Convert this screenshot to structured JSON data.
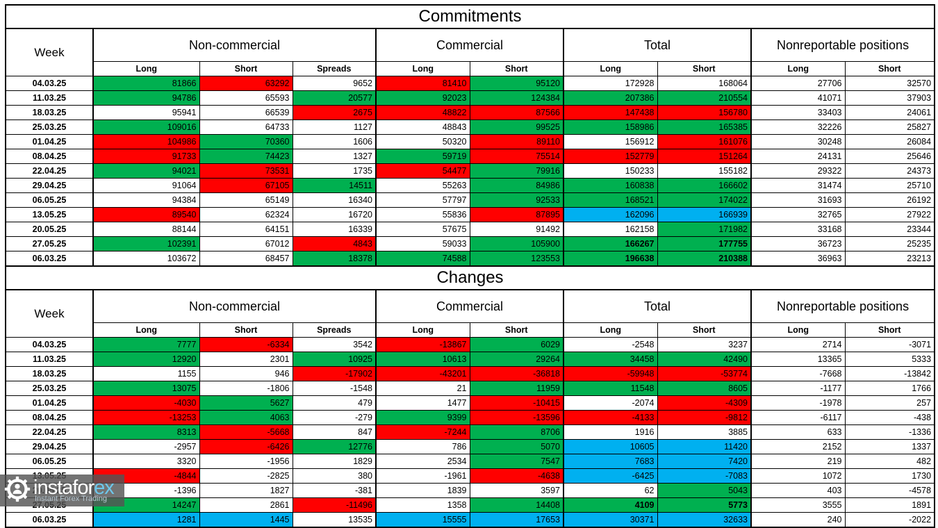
{
  "colors": {
    "g": "#00B050",
    "r": "#FF0000",
    "b": "#00B0F0",
    "w": "#FFFFFF"
  },
  "watermark": {
    "brand_main": "instafor",
    "brand_accent": "ex",
    "tagline": "Instant Forex Trading",
    "gear_icon": "gear-person-icon"
  },
  "tables": [
    {
      "title": "Commitments",
      "week_header": "Week",
      "groups": [
        {
          "label": "Non-commercial",
          "cols": [
            "Long",
            "Short",
            "Spreads"
          ]
        },
        {
          "label": "Commercial",
          "cols": [
            "Long",
            "Short"
          ]
        },
        {
          "label": "Total",
          "cols": [
            "Long",
            "Short"
          ]
        },
        {
          "label": "Nonreportable positions",
          "cols": [
            "Long",
            "Short"
          ]
        }
      ],
      "rows": [
        {
          "week": "04.03.25",
          "cells": [
            {
              "v": "81866",
              "c": "g"
            },
            {
              "v": "63292",
              "c": "r"
            },
            {
              "v": "9652"
            },
            {
              "v": "81410",
              "c": "r"
            },
            {
              "v": "95120",
              "c": "g"
            },
            {
              "v": "172928"
            },
            {
              "v": "168064"
            },
            {
              "v": "27706"
            },
            {
              "v": "32570"
            }
          ]
        },
        {
          "week": "11.03.25",
          "cells": [
            {
              "v": "94786",
              "c": "g"
            },
            {
              "v": "65593"
            },
            {
              "v": "20577",
              "c": "g"
            },
            {
              "v": "92023",
              "c": "g"
            },
            {
              "v": "124384",
              "c": "g"
            },
            {
              "v": "207386",
              "c": "g"
            },
            {
              "v": "210554",
              "c": "g"
            },
            {
              "v": "41071"
            },
            {
              "v": "37903"
            }
          ]
        },
        {
          "week": "18.03.25",
          "cells": [
            {
              "v": "95941"
            },
            {
              "v": "66539"
            },
            {
              "v": "2675",
              "c": "r"
            },
            {
              "v": "48822",
              "c": "r"
            },
            {
              "v": "87566",
              "c": "r"
            },
            {
              "v": "147438",
              "c": "r"
            },
            {
              "v": "156780",
              "c": "r"
            },
            {
              "v": "33403"
            },
            {
              "v": "24061"
            }
          ]
        },
        {
          "week": "25.03.25",
          "cells": [
            {
              "v": "109016",
              "c": "g"
            },
            {
              "v": "64733"
            },
            {
              "v": "1127"
            },
            {
              "v": "48843"
            },
            {
              "v": "99525",
              "c": "g"
            },
            {
              "v": "158986",
              "c": "g"
            },
            {
              "v": "165385",
              "c": "g"
            },
            {
              "v": "32226"
            },
            {
              "v": "25827"
            }
          ]
        },
        {
          "week": "01.04.25",
          "cells": [
            {
              "v": "104986",
              "c": "r"
            },
            {
              "v": "70360",
              "c": "g"
            },
            {
              "v": "1606"
            },
            {
              "v": "50320"
            },
            {
              "v": "89110",
              "c": "r"
            },
            {
              "v": "156912"
            },
            {
              "v": "161076",
              "c": "r"
            },
            {
              "v": "30248"
            },
            {
              "v": "26084"
            }
          ]
        },
        {
          "week": "08.04.25",
          "cells": [
            {
              "v": "91733",
              "c": "r"
            },
            {
              "v": "74423",
              "c": "g"
            },
            {
              "v": "1327"
            },
            {
              "v": "59719",
              "c": "g"
            },
            {
              "v": "75514",
              "c": "r"
            },
            {
              "v": "152779",
              "c": "r"
            },
            {
              "v": "151264",
              "c": "r"
            },
            {
              "v": "24131"
            },
            {
              "v": "25646"
            }
          ]
        },
        {
          "week": "22.04.25",
          "cells": [
            {
              "v": "94021",
              "c": "g"
            },
            {
              "v": "73531",
              "c": "r"
            },
            {
              "v": "1735"
            },
            {
              "v": "54477",
              "c": "r"
            },
            {
              "v": "79916",
              "c": "g"
            },
            {
              "v": "150233"
            },
            {
              "v": "155182"
            },
            {
              "v": "29322"
            },
            {
              "v": "24373"
            }
          ]
        },
        {
          "week": "29.04.25",
          "cells": [
            {
              "v": "91064"
            },
            {
              "v": "67105",
              "c": "r"
            },
            {
              "v": "14511",
              "c": "g"
            },
            {
              "v": "55263"
            },
            {
              "v": "84986",
              "c": "g"
            },
            {
              "v": "160838",
              "c": "g"
            },
            {
              "v": "166602",
              "c": "g"
            },
            {
              "v": "31474"
            },
            {
              "v": "25710"
            }
          ]
        },
        {
          "week": "06.05.25",
          "cells": [
            {
              "v": "94384"
            },
            {
              "v": "65149"
            },
            {
              "v": "16340"
            },
            {
              "v": "57797"
            },
            {
              "v": "92533",
              "c": "g"
            },
            {
              "v": "168521",
              "c": "g"
            },
            {
              "v": "174022",
              "c": "g"
            },
            {
              "v": "31693"
            },
            {
              "v": "26192"
            }
          ]
        },
        {
          "week": "13.05.25",
          "cells": [
            {
              "v": "89540",
              "c": "r"
            },
            {
              "v": "62324"
            },
            {
              "v": "16720"
            },
            {
              "v": "55836"
            },
            {
              "v": "87895",
              "c": "r"
            },
            {
              "v": "162096",
              "c": "b"
            },
            {
              "v": "166939",
              "c": "b"
            },
            {
              "v": "32765"
            },
            {
              "v": "27922"
            }
          ]
        },
        {
          "week": "20.05.25",
          "cells": [
            {
              "v": "88144"
            },
            {
              "v": "64151"
            },
            {
              "v": "16339"
            },
            {
              "v": "57675"
            },
            {
              "v": "91492"
            },
            {
              "v": "162158"
            },
            {
              "v": "171982",
              "c": "g"
            },
            {
              "v": "33168"
            },
            {
              "v": "23344"
            }
          ]
        },
        {
          "week": "27.05.25",
          "cells": [
            {
              "v": "102391",
              "c": "g"
            },
            {
              "v": "67012"
            },
            {
              "v": "4843",
              "c": "r"
            },
            {
              "v": "59033"
            },
            {
              "v": "105900",
              "c": "g"
            },
            {
              "v": "166267",
              "c": "g",
              "b": true
            },
            {
              "v": "177755",
              "c": "g",
              "b": true
            },
            {
              "v": "36723"
            },
            {
              "v": "25235"
            }
          ]
        },
        {
          "week": "06.03.25",
          "cells": [
            {
              "v": "103672"
            },
            {
              "v": "68457"
            },
            {
              "v": "18378",
              "c": "g"
            },
            {
              "v": "74588",
              "c": "g"
            },
            {
              "v": "123553",
              "c": "g"
            },
            {
              "v": "196638",
              "c": "g",
              "b": true
            },
            {
              "v": "210388",
              "c": "g",
              "b": true
            },
            {
              "v": "36963"
            },
            {
              "v": "23213"
            }
          ]
        }
      ]
    },
    {
      "title": "Changes",
      "week_header": "Week",
      "groups": [
        {
          "label": "Non-commercial",
          "cols": [
            "Long",
            "Short",
            "Spreads"
          ]
        },
        {
          "label": "Commercial",
          "cols": [
            "Long",
            "Short"
          ]
        },
        {
          "label": "Total",
          "cols": [
            "Long",
            "Short"
          ]
        },
        {
          "label": "Nonreportable positions",
          "cols": [
            "Long",
            "Short"
          ]
        }
      ],
      "rows": [
        {
          "week": "04.03.25",
          "cells": [
            {
              "v": "7777",
              "c": "g"
            },
            {
              "v": "-6334",
              "c": "r"
            },
            {
              "v": "3542"
            },
            {
              "v": "-13867",
              "c": "r"
            },
            {
              "v": "6029",
              "c": "g"
            },
            {
              "v": "-2548"
            },
            {
              "v": "3237"
            },
            {
              "v": "2714"
            },
            {
              "v": "-3071"
            }
          ]
        },
        {
          "week": "11.03.25",
          "cells": [
            {
              "v": "12920",
              "c": "g"
            },
            {
              "v": "2301"
            },
            {
              "v": "10925",
              "c": "g"
            },
            {
              "v": "10613",
              "c": "g"
            },
            {
              "v": "29264",
              "c": "g"
            },
            {
              "v": "34458",
              "c": "g"
            },
            {
              "v": "42490",
              "c": "g"
            },
            {
              "v": "13365"
            },
            {
              "v": "5333"
            }
          ]
        },
        {
          "week": "18.03.25",
          "cells": [
            {
              "v": "1155"
            },
            {
              "v": "946"
            },
            {
              "v": "-17902",
              "c": "r"
            },
            {
              "v": "-43201",
              "c": "r"
            },
            {
              "v": "-36818",
              "c": "r"
            },
            {
              "v": "-59948",
              "c": "r"
            },
            {
              "v": "-53774",
              "c": "r"
            },
            {
              "v": "-7668"
            },
            {
              "v": "-13842"
            }
          ]
        },
        {
          "week": "25.03.25",
          "cells": [
            {
              "v": "13075",
              "c": "g"
            },
            {
              "v": "-1806"
            },
            {
              "v": "-1548"
            },
            {
              "v": "21"
            },
            {
              "v": "11959",
              "c": "g"
            },
            {
              "v": "11548",
              "c": "g"
            },
            {
              "v": "8605",
              "c": "g"
            },
            {
              "v": "-1177"
            },
            {
              "v": "1766"
            }
          ]
        },
        {
          "week": "01.04.25",
          "cells": [
            {
              "v": "-4030",
              "c": "r"
            },
            {
              "v": "5627",
              "c": "g"
            },
            {
              "v": "479"
            },
            {
              "v": "1477"
            },
            {
              "v": "-10415",
              "c": "r"
            },
            {
              "v": "-2074"
            },
            {
              "v": "-4309",
              "c": "r"
            },
            {
              "v": "-1978"
            },
            {
              "v": "257"
            }
          ]
        },
        {
          "week": "08.04.25",
          "cells": [
            {
              "v": "-13253",
              "c": "r"
            },
            {
              "v": "4063",
              "c": "g"
            },
            {
              "v": "-279"
            },
            {
              "v": "9399",
              "c": "g"
            },
            {
              "v": "-13596",
              "c": "r"
            },
            {
              "v": "-4133",
              "c": "r"
            },
            {
              "v": "-9812",
              "c": "r"
            },
            {
              "v": "-6117"
            },
            {
              "v": "-438"
            }
          ]
        },
        {
          "week": "22.04.25",
          "cells": [
            {
              "v": "8313",
              "c": "g"
            },
            {
              "v": "-5668",
              "c": "r"
            },
            {
              "v": "847"
            },
            {
              "v": "-7244",
              "c": "r"
            },
            {
              "v": "8706",
              "c": "g"
            },
            {
              "v": "1916"
            },
            {
              "v": "3885"
            },
            {
              "v": "633"
            },
            {
              "v": "-1336"
            }
          ]
        },
        {
          "week": "29.04.25",
          "cells": [
            {
              "v": "-2957"
            },
            {
              "v": "-6426",
              "c": "r"
            },
            {
              "v": "12776",
              "c": "g"
            },
            {
              "v": "786"
            },
            {
              "v": "5070",
              "c": "g"
            },
            {
              "v": "10605",
              "c": "b"
            },
            {
              "v": "11420",
              "c": "b"
            },
            {
              "v": "2152"
            },
            {
              "v": "1337"
            }
          ]
        },
        {
          "week": "06.05.25",
          "cells": [
            {
              "v": "3320"
            },
            {
              "v": "-1956"
            },
            {
              "v": "1829"
            },
            {
              "v": "2534"
            },
            {
              "v": "7547",
              "c": "g"
            },
            {
              "v": "7683",
              "c": "b"
            },
            {
              "v": "7420",
              "c": "b"
            },
            {
              "v": "219"
            },
            {
              "v": "482"
            }
          ]
        },
        {
          "week": "13.05.25",
          "cells": [
            {
              "v": "-4844",
              "c": "r"
            },
            {
              "v": "-2825"
            },
            {
              "v": "380"
            },
            {
              "v": "-1961"
            },
            {
              "v": "-4638",
              "c": "r"
            },
            {
              "v": "-6425",
              "c": "b"
            },
            {
              "v": "-7083",
              "c": "b"
            },
            {
              "v": "1072"
            },
            {
              "v": "1730"
            }
          ]
        },
        {
          "week": "20.05.25",
          "cells": [
            {
              "v": "-1396"
            },
            {
              "v": "1827"
            },
            {
              "v": "-381"
            },
            {
              "v": "1839"
            },
            {
              "v": "3597"
            },
            {
              "v": "62"
            },
            {
              "v": "5043",
              "c": "g"
            },
            {
              "v": "403"
            },
            {
              "v": "-4578"
            }
          ]
        },
        {
          "week": "27.05.25",
          "cells": [
            {
              "v": "14247",
              "c": "g"
            },
            {
              "v": "2861"
            },
            {
              "v": "-11496",
              "c": "r"
            },
            {
              "v": "1358"
            },
            {
              "v": "14408",
              "c": "g"
            },
            {
              "v": "4109",
              "c": "g",
              "b": true
            },
            {
              "v": "5773",
              "c": "g",
              "b": true
            },
            {
              "v": "3555"
            },
            {
              "v": "1891"
            }
          ]
        },
        {
          "week": "06.03.25",
          "cells": [
            {
              "v": "1281",
              "c": "b"
            },
            {
              "v": "1445",
              "c": "b"
            },
            {
              "v": "13535"
            },
            {
              "v": "15555",
              "c": "b"
            },
            {
              "v": "17653",
              "c": "b"
            },
            {
              "v": "30371",
              "c": "b"
            },
            {
              "v": "32633",
              "c": "b"
            },
            {
              "v": "240"
            },
            {
              "v": "-2022"
            }
          ]
        }
      ]
    }
  ]
}
